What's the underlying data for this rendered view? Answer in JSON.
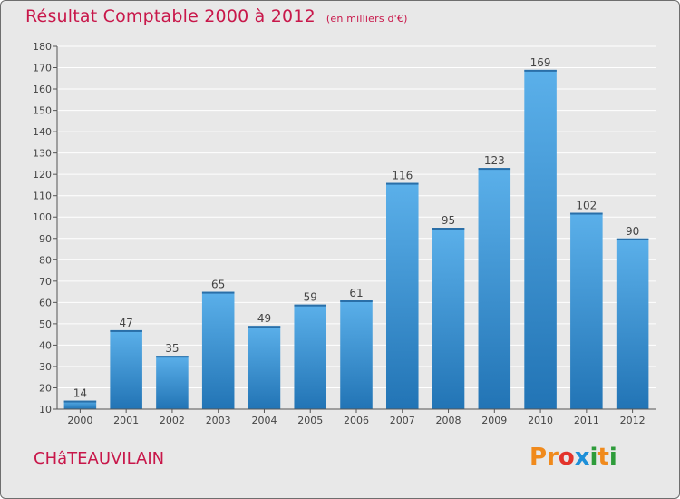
{
  "header": {
    "title": "Résultat Comptable 2000 à 2012",
    "unit": "(en milliers d'€)"
  },
  "footer": {
    "place": "CHâTEAUVILAIN",
    "logo_letters": [
      "P",
      "r",
      "o",
      "x",
      "i",
      "t",
      "i"
    ],
    "logo_colors": [
      "#f08a1c",
      "#f08a1c",
      "#e3332b",
      "#1d8fd8",
      "#2e9c3a",
      "#f08a1c",
      "#2e9c3a"
    ]
  },
  "colors": {
    "title": "#c8174a",
    "bar_top": "#5bb0ea",
    "bar_bottom": "#2274b5",
    "grid": "#ffffff",
    "background": "#e8e8e8"
  },
  "chart_data": {
    "type": "bar",
    "title": "Résultat Comptable 2000 à 2012",
    "xlabel": "",
    "ylabel": "",
    "categories": [
      "2000",
      "2001",
      "2002",
      "2003",
      "2004",
      "2005",
      "2006",
      "2007",
      "2008",
      "2009",
      "2010",
      "2011",
      "2012"
    ],
    "values": [
      14,
      47,
      35,
      65,
      49,
      59,
      61,
      116,
      95,
      123,
      169,
      102,
      90
    ],
    "ylim": [
      10,
      180
    ],
    "yticks": [
      10,
      20,
      30,
      40,
      50,
      60,
      70,
      80,
      90,
      100,
      110,
      120,
      130,
      140,
      150,
      160,
      170,
      180
    ],
    "grid": true
  }
}
